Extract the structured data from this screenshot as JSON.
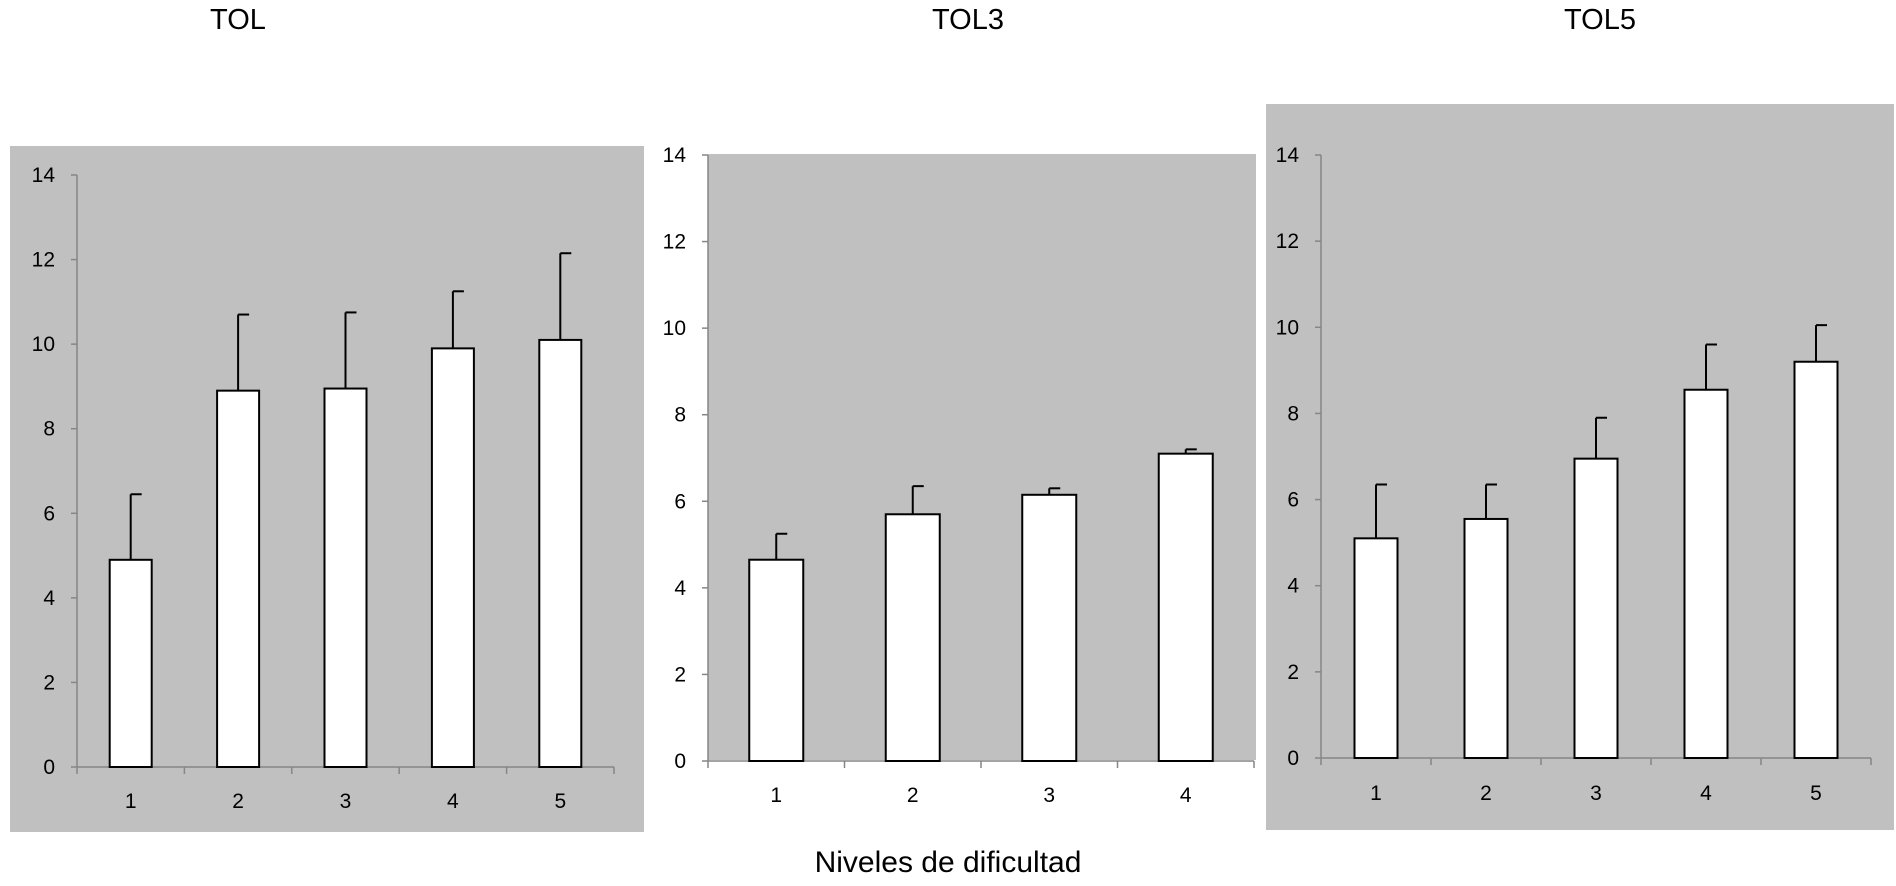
{
  "chart_data": [
    {
      "type": "bar",
      "title": "TOL",
      "categories": [
        "1",
        "2",
        "3",
        "4",
        "5"
      ],
      "values": [
        4.9,
        8.9,
        8.95,
        9.9,
        10.1
      ],
      "error": [
        1.55,
        1.8,
        1.8,
        1.35,
        2.05
      ],
      "ylim": [
        0,
        14
      ],
      "yticks": [
        0,
        2,
        4,
        6,
        8,
        10,
        12,
        14
      ],
      "background": "#c0c0c0",
      "bar_fill": "#ffffff"
    },
    {
      "type": "bar",
      "title": "TOL3",
      "categories": [
        "1",
        "2",
        "3",
        "4"
      ],
      "values": [
        4.65,
        5.7,
        6.15,
        7.1
      ],
      "error": [
        0.6,
        0.65,
        0.15,
        0.1
      ],
      "ylim": [
        0,
        14
      ],
      "yticks": [
        0,
        2,
        4,
        6,
        8,
        10,
        12,
        14
      ],
      "background": "#c0c0c0",
      "bar_fill": "#ffffff"
    },
    {
      "type": "bar",
      "title": "TOL5",
      "categories": [
        "1",
        "2",
        "3",
        "4",
        "5"
      ],
      "values": [
        5.1,
        5.55,
        6.95,
        8.55,
        9.2
      ],
      "error": [
        1.25,
        0.8,
        0.95,
        1.05,
        0.85
      ],
      "ylim": [
        0,
        14
      ],
      "yticks": [
        0,
        2,
        4,
        6,
        8,
        10,
        12,
        14
      ],
      "background": "#c0c0c0",
      "bar_fill": "#ffffff"
    }
  ],
  "xlabel": "Niveles de dificultad"
}
